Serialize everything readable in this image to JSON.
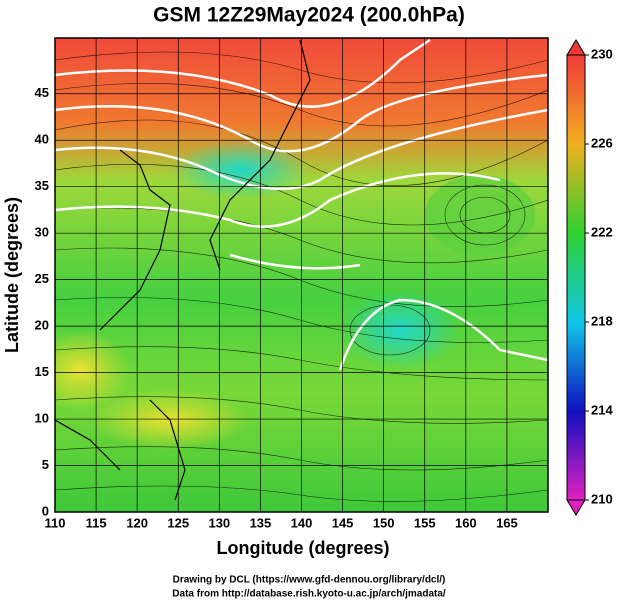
{
  "map": {
    "title": "GSM 12Z29May2024 (200.0hPa)",
    "x_axis_label": "Longitude (degrees)",
    "y_axis_label": "Latitude  (degrees)",
    "xlim": [
      110,
      170
    ],
    "xticks": [
      110,
      115,
      120,
      125,
      130,
      135,
      140,
      145,
      150,
      155,
      160,
      165
    ],
    "ylim": [
      0,
      51
    ],
    "yticks": [
      0,
      5,
      10,
      15,
      20,
      25,
      30,
      35,
      40,
      45
    ],
    "colorbar": {
      "lim": [
        210,
        230
      ],
      "ticks": [
        210,
        214,
        218,
        222,
        226,
        230
      ]
    }
  },
  "credits": [
    "Drawing by DCL (https://www.gfd-dennou.org/library/dcl/)",
    "Data from http://database.rish.kyoto-u.ac.jp/arch/jmadata/"
  ]
}
